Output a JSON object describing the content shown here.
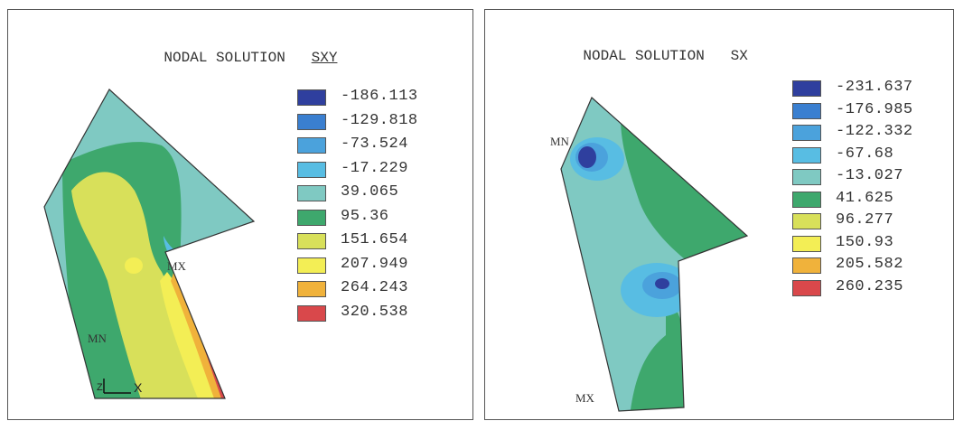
{
  "colors": {
    "c1": "#2f3f9e",
    "c2": "#3a7fd0",
    "c3": "#4ba2dc",
    "c4": "#58bde3",
    "c5": "#7fc9c2",
    "c6": "#3ea86d",
    "c7": "#d8e05a",
    "c8": "#f3ee55",
    "c9": "#f0b23b",
    "c10": "#d9484b"
  },
  "left": {
    "title": "NODAL SOLUTION",
    "quantity": "SXY",
    "legend": [
      "-186.113",
      "-129.818",
      "-73.524",
      "-17.229",
      "39.065",
      "95.36",
      "151.654",
      "207.949",
      "264.243",
      "320.538"
    ],
    "mx_label": "MX",
    "mn_label": "MN",
    "axis_z": "Z",
    "axis_x": "X"
  },
  "right": {
    "title": "NODAL SOLUTION",
    "quantity": "SX",
    "legend": [
      "-231.637",
      "-176.985",
      "-122.332",
      "-67.68",
      "-13.027",
      "41.625",
      "96.277",
      "150.93",
      "205.582",
      "260.235"
    ],
    "mn_label": "MN",
    "mx_label": "MX"
  }
}
